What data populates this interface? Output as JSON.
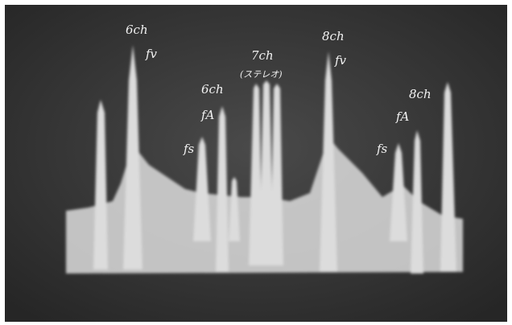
{
  "annotations": [
    "6ch",
    "fv",
    "6ch",
    "fA",
    "fs",
    "7ch",
    "(ステレオ)",
    "8ch",
    "fv",
    "fs",
    "8ch",
    "fA"
  ]
}
